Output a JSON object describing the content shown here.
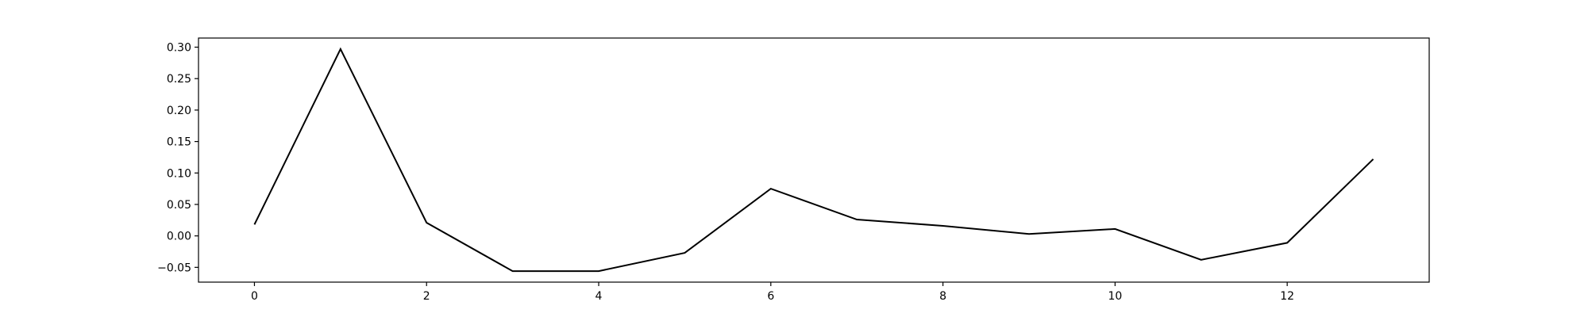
{
  "chart_data": {
    "type": "line",
    "title": "",
    "xlabel": "",
    "ylabel": "",
    "x": [
      0,
      1,
      2,
      3,
      4,
      5,
      6,
      7,
      8,
      9,
      10,
      11,
      12,
      13
    ],
    "series": [
      {
        "values": [
          0.018,
          0.297,
          0.021,
          -0.056,
          -0.056,
          -0.027,
          0.075,
          0.026,
          0.016,
          0.003,
          0.011,
          -0.038,
          -0.011,
          0.122
        ],
        "color": "#000000"
      }
    ],
    "xlim": [
      -0.65,
      13.65
    ],
    "ylim": [
      -0.0735,
      0.3145
    ],
    "xticks": [
      0,
      2,
      4,
      6,
      8,
      10,
      12
    ],
    "xtick_labels": [
      "0",
      "2",
      "4",
      "6",
      "8",
      "10",
      "12"
    ],
    "yticks": [
      -0.05,
      0.0,
      0.05,
      0.1,
      0.15,
      0.2,
      0.25,
      0.3
    ],
    "ytick_labels": [
      "−0.05",
      "0.00",
      "0.05",
      "0.10",
      "0.15",
      "0.20",
      "0.25",
      "0.30"
    ],
    "grid": false,
    "legend": false
  }
}
